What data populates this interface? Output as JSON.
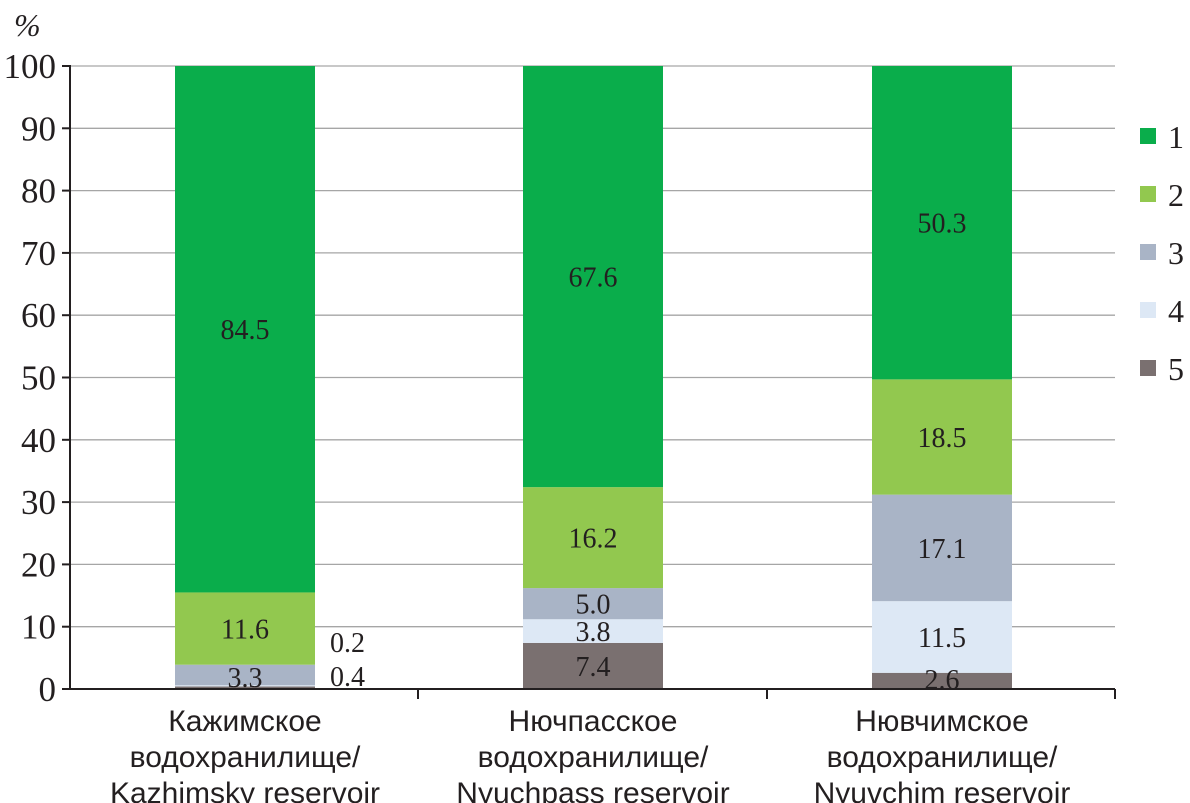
{
  "chart_data": {
    "type": "bar",
    "stacked": true,
    "ylabel": "%",
    "ylim": [
      0,
      100
    ],
    "yticks": [
      0,
      10,
      20,
      30,
      40,
      50,
      60,
      70,
      80,
      90,
      100
    ],
    "grid": true,
    "legend_position": "right",
    "categories": [
      [
        "Кажимское",
        "водохранилище/",
        "Kazhimsky reservoir"
      ],
      [
        "Нючпасское",
        "водохранилище/",
        "Nyuchpass reservoir"
      ],
      [
        "Нювчимское",
        "водохранилище/",
        "Nyuvchim reservoir"
      ]
    ],
    "series": [
      {
        "name": "1",
        "color": "#0aad4b",
        "values": [
          84.5,
          67.6,
          50.3
        ],
        "labels": [
          "84.5",
          "67.6",
          "50.3"
        ]
      },
      {
        "name": "2",
        "color": "#92c84f",
        "values": [
          11.6,
          16.2,
          18.5
        ],
        "labels": [
          "11.6",
          "16.2",
          "18.5"
        ]
      },
      {
        "name": "3",
        "color": "#a9b4c6",
        "values": [
          3.3,
          5.0,
          17.1
        ],
        "labels": [
          "3.3",
          "5.0",
          "17.1"
        ]
      },
      {
        "name": "4",
        "color": "#dde8f5",
        "values": [
          0.2,
          3.8,
          11.5
        ],
        "labels": [
          "0.2",
          "3.8",
          "11.5"
        ]
      },
      {
        "name": "5",
        "color": "#7a7070",
        "values": [
          0.4,
          7.4,
          2.6
        ],
        "labels": [
          "0.4",
          "7.4",
          "2.6"
        ]
      }
    ]
  }
}
